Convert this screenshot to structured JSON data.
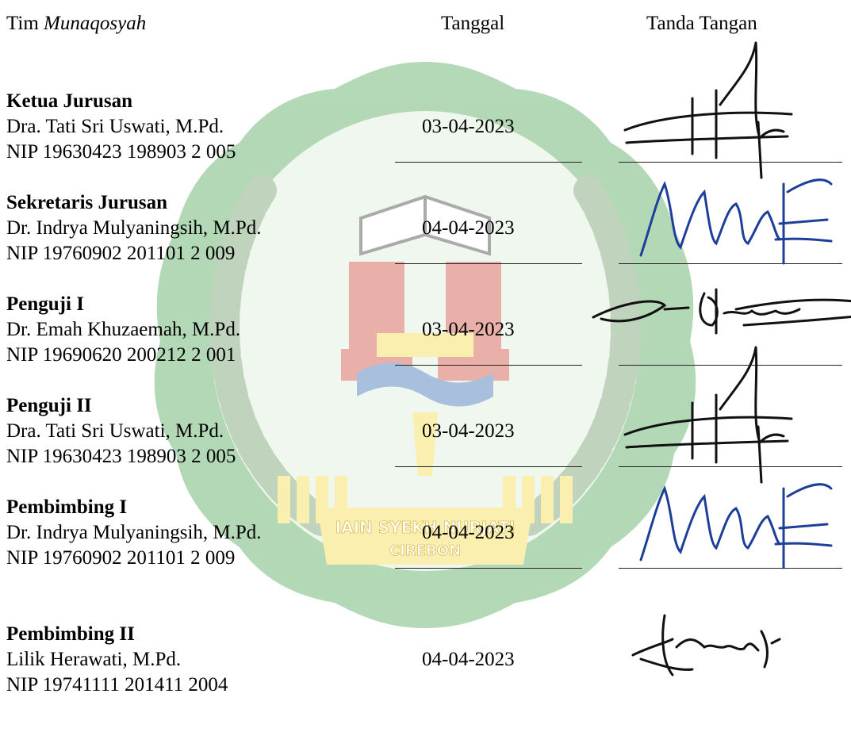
{
  "header": {
    "team_prefix": "Tim ",
    "team_italic": "Munaqosyah",
    "date_label": "Tanggal",
    "signature_label": "Tanda Tangan"
  },
  "watermark": {
    "banner_line1": "IAIN SYEKH NURJATI",
    "banner_line2": "CIREBON",
    "colors": {
      "green": "#3a9b3e",
      "light_green": "#d9ecd6",
      "blue": "#1e5aa8",
      "red": "#c8331f",
      "yellow": "#f6d733"
    }
  },
  "entries": [
    {
      "role": "Ketua Jurusan",
      "name": "Dra. Tati Sri Uswati, M.Pd.",
      "nip": "NIP 19630423 198903 2 005",
      "date": "03-04-2023",
      "signature": "signature-a"
    },
    {
      "role": "Sekretaris Jurusan",
      "name": "Dr. Indrya Mulyaningsih, M.Pd.",
      "nip": "NIP 19760902 201101 2 009",
      "date": "04-04-2023",
      "signature": "signature-b"
    },
    {
      "role": "Penguji I",
      "name": "Dr. Emah Khuzaemah, M.Pd.",
      "nip": "NIP 19690620 200212 2 001",
      "date": "03-04-2023",
      "signature": "signature-c"
    },
    {
      "role": "Penguji II",
      "name": "Dra. Tati Sri Uswati, M.Pd.",
      "nip": "NIP 19630423 198903 2 005",
      "date": "03-04-2023",
      "signature": "signature-a"
    },
    {
      "role": "Pembimbing I",
      "name": "Dr. Indrya Mulyaningsih, M.Pd.",
      "nip": "NIP 19760902 201101 2 009",
      "date": "04-04-2023",
      "signature": "signature-b"
    },
    {
      "role": "Pembimbing II",
      "name": "Lilik Herawati, M.Pd.",
      "nip": "NIP 19741111 201411 2004",
      "date": "04-04-2023",
      "signature": "signature-d"
    }
  ]
}
